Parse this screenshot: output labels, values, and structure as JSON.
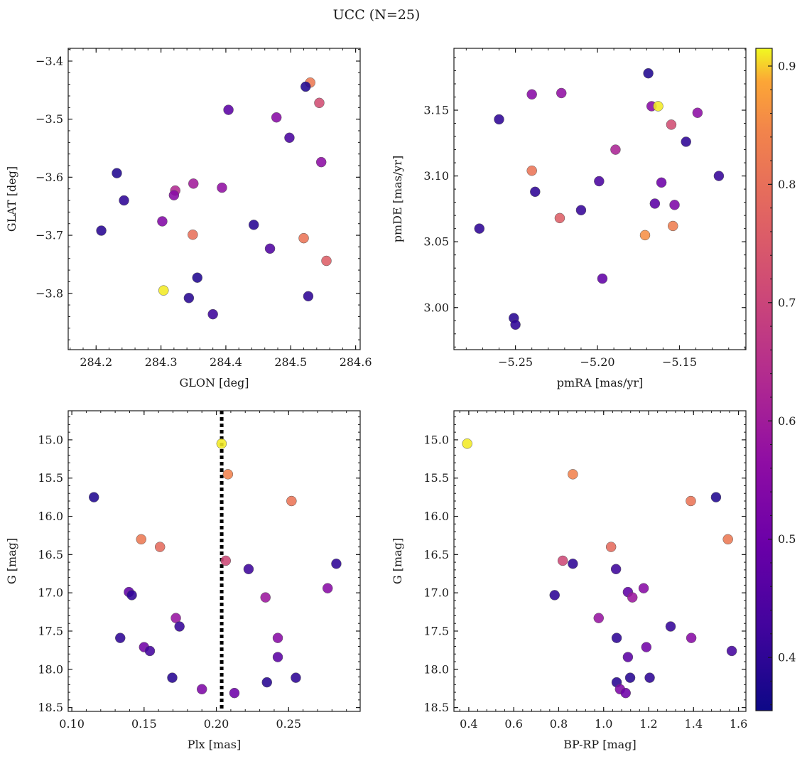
{
  "figure": {
    "title": "UCC (N=25)",
    "colorbar": {
      "colormap": "plasma",
      "vmin": 0.355,
      "vmax": 0.915,
      "ticks": [
        0.4,
        0.5,
        0.6,
        0.7,
        0.8,
        0.9
      ],
      "tick_labels": [
        "0.4",
        "0.5",
        "0.6",
        "0.7",
        "0.8",
        "0.9"
      ]
    },
    "colors": {
      "marker_edge": "#555555",
      "vline": "#000000",
      "axis": "#1a1a1a"
    }
  },
  "chart_data": [
    {
      "type": "scatter",
      "id": "glon-glat",
      "xlabel": "GLON [deg]",
      "ylabel": "GLAT [deg]",
      "xlim": [
        284.157,
        284.607
      ],
      "ylim": [
        -3.897,
        -3.378
      ],
      "y_inverted": false,
      "xticks": [
        284.2,
        284.3,
        284.4,
        284.5,
        284.6
      ],
      "xtick_labels": [
        "284.2",
        "284.3",
        "284.4",
        "284.5",
        "284.6"
      ],
      "yticks": [
        -3.8,
        -3.7,
        -3.6,
        -3.5,
        -3.4
      ],
      "ytick_labels": [
        "−3.8",
        "−3.7",
        "−3.6",
        "−3.5",
        "−3.4"
      ],
      "points": [
        {
          "x": 284.53,
          "y": -3.437,
          "c": 0.82
        },
        {
          "x": 284.523,
          "y": -3.444,
          "c": 0.38
        },
        {
          "x": 284.544,
          "y": -3.472,
          "c": 0.72
        },
        {
          "x": 284.404,
          "y": -3.484,
          "c": 0.47
        },
        {
          "x": 284.478,
          "y": -3.497,
          "c": 0.55
        },
        {
          "x": 284.498,
          "y": -3.532,
          "c": 0.44
        },
        {
          "x": 284.547,
          "y": -3.574,
          "c": 0.56
        },
        {
          "x": 284.232,
          "y": -3.593,
          "c": 0.38
        },
        {
          "x": 284.35,
          "y": -3.611,
          "c": 0.6
        },
        {
          "x": 284.394,
          "y": -3.618,
          "c": 0.57
        },
        {
          "x": 284.322,
          "y": -3.623,
          "c": 0.63
        },
        {
          "x": 284.32,
          "y": -3.631,
          "c": 0.55
        },
        {
          "x": 284.243,
          "y": -3.64,
          "c": 0.4
        },
        {
          "x": 284.302,
          "y": -3.676,
          "c": 0.54
        },
        {
          "x": 284.443,
          "y": -3.682,
          "c": 0.39
        },
        {
          "x": 284.208,
          "y": -3.692,
          "c": 0.39
        },
        {
          "x": 284.349,
          "y": -3.699,
          "c": 0.8
        },
        {
          "x": 284.52,
          "y": -3.705,
          "c": 0.81
        },
        {
          "x": 284.468,
          "y": -3.723,
          "c": 0.45
        },
        {
          "x": 284.555,
          "y": -3.744,
          "c": 0.76
        },
        {
          "x": 284.356,
          "y": -3.773,
          "c": 0.38
        },
        {
          "x": 284.304,
          "y": -3.795,
          "c": 0.91
        },
        {
          "x": 284.527,
          "y": -3.805,
          "c": 0.4
        },
        {
          "x": 284.343,
          "y": -3.808,
          "c": 0.39
        },
        {
          "x": 284.38,
          "y": -3.836,
          "c": 0.42
        }
      ]
    },
    {
      "type": "scatter",
      "id": "pmra-pmde",
      "xlabel": "pmRA [mas/yr]",
      "ylabel": "pmDE [mas/yr]",
      "xlim": [
        -5.2875,
        -5.1095
      ],
      "ylim": [
        2.968,
        3.197
      ],
      "y_inverted": false,
      "xticks": [
        -5.25,
        -5.2,
        -5.15
      ],
      "xtick_labels": [
        "−5.25",
        "−5.20",
        "−5.15"
      ],
      "yticks": [
        3.0,
        3.05,
        3.1,
        3.15
      ],
      "ytick_labels": [
        "3.00",
        "3.05",
        "3.10",
        "3.15"
      ],
      "points": [
        {
          "x": -5.169,
          "y": 3.178,
          "c": 0.38
        },
        {
          "x": -5.222,
          "y": 3.163,
          "c": 0.57
        },
        {
          "x": -5.24,
          "y": 3.162,
          "c": 0.55
        },
        {
          "x": -5.167,
          "y": 3.153,
          "c": 0.55
        },
        {
          "x": -5.163,
          "y": 3.153,
          "c": 0.91
        },
        {
          "x": -5.26,
          "y": 3.143,
          "c": 0.4
        },
        {
          "x": -5.139,
          "y": 3.148,
          "c": 0.56
        },
        {
          "x": -5.155,
          "y": 3.139,
          "c": 0.72
        },
        {
          "x": -5.146,
          "y": 3.126,
          "c": 0.4
        },
        {
          "x": -5.189,
          "y": 3.12,
          "c": 0.62
        },
        {
          "x": -5.24,
          "y": 3.104,
          "c": 0.81
        },
        {
          "x": -5.126,
          "y": 3.1,
          "c": 0.41
        },
        {
          "x": -5.199,
          "y": 3.096,
          "c": 0.44
        },
        {
          "x": -5.161,
          "y": 3.095,
          "c": 0.5
        },
        {
          "x": -5.238,
          "y": 3.088,
          "c": 0.4
        },
        {
          "x": -5.165,
          "y": 3.079,
          "c": 0.47
        },
        {
          "x": -5.153,
          "y": 3.078,
          "c": 0.53
        },
        {
          "x": -5.21,
          "y": 3.074,
          "c": 0.41
        },
        {
          "x": -5.223,
          "y": 3.068,
          "c": 0.76
        },
        {
          "x": -5.154,
          "y": 3.062,
          "c": 0.83
        },
        {
          "x": -5.272,
          "y": 3.06,
          "c": 0.4
        },
        {
          "x": -5.171,
          "y": 3.055,
          "c": 0.86
        },
        {
          "x": -5.197,
          "y": 3.022,
          "c": 0.48
        },
        {
          "x": -5.251,
          "y": 2.992,
          "c": 0.39
        },
        {
          "x": -5.25,
          "y": 2.987,
          "c": 0.4
        }
      ]
    },
    {
      "type": "scatter",
      "id": "plx-g",
      "xlabel": "Plx [mas]",
      "ylabel": "G [mag]",
      "xlim": [
        0.0975,
        0.2995
      ],
      "ylim": [
        18.55,
        14.62
      ],
      "y_inverted": true,
      "xticks": [
        0.1,
        0.15,
        0.2,
        0.25
      ],
      "xtick_labels": [
        "0.10",
        "0.15",
        "0.20",
        "0.25"
      ],
      "yticks": [
        15.0,
        15.5,
        16.0,
        16.5,
        17.0,
        17.5,
        18.0,
        18.5
      ],
      "ytick_labels": [
        "15.0",
        "15.5",
        "16.0",
        "16.5",
        "17.0",
        "17.5",
        "18.0",
        "18.5"
      ],
      "vline_x": 0.2037,
      "points": [
        {
          "x": 0.2036,
          "y": 15.05,
          "c": 0.91
        },
        {
          "x": 0.208,
          "y": 15.45,
          "c": 0.84
        },
        {
          "x": 0.1153,
          "y": 15.75,
          "c": 0.38
        },
        {
          "x": 0.252,
          "y": 15.8,
          "c": 0.81
        },
        {
          "x": 0.148,
          "y": 16.3,
          "c": 0.82
        },
        {
          "x": 0.161,
          "y": 16.4,
          "c": 0.79
        },
        {
          "x": 0.2065,
          "y": 16.58,
          "c": 0.71
        },
        {
          "x": 0.283,
          "y": 16.62,
          "c": 0.4
        },
        {
          "x": 0.2223,
          "y": 16.69,
          "c": 0.42
        },
        {
          "x": 0.277,
          "y": 16.94,
          "c": 0.55
        },
        {
          "x": 0.1395,
          "y": 16.99,
          "c": 0.48
        },
        {
          "x": 0.1415,
          "y": 17.03,
          "c": 0.4
        },
        {
          "x": 0.234,
          "y": 17.06,
          "c": 0.59
        },
        {
          "x": 0.172,
          "y": 17.33,
          "c": 0.58
        },
        {
          "x": 0.1745,
          "y": 17.44,
          "c": 0.41
        },
        {
          "x": 0.1335,
          "y": 17.59,
          "c": 0.4
        },
        {
          "x": 0.2425,
          "y": 17.59,
          "c": 0.55
        },
        {
          "x": 0.15,
          "y": 17.71,
          "c": 0.51
        },
        {
          "x": 0.154,
          "y": 17.76,
          "c": 0.43
        },
        {
          "x": 0.2425,
          "y": 17.84,
          "c": 0.47
        },
        {
          "x": 0.1695,
          "y": 18.11,
          "c": 0.39
        },
        {
          "x": 0.255,
          "y": 18.11,
          "c": 0.4
        },
        {
          "x": 0.235,
          "y": 18.17,
          "c": 0.39
        },
        {
          "x": 0.19,
          "y": 18.26,
          "c": 0.53
        },
        {
          "x": 0.2125,
          "y": 18.31,
          "c": 0.5
        }
      ]
    },
    {
      "type": "scatter",
      "id": "bprp-g",
      "xlabel": "BP-RP [mag]",
      "ylabel": "G [mag]",
      "xlim": [
        0.334,
        1.633
      ],
      "ylim": [
        18.55,
        14.62
      ],
      "y_inverted": true,
      "xticks": [
        0.4,
        0.6,
        0.8,
        1.0,
        1.2,
        1.4,
        1.6
      ],
      "xtick_labels": [
        "0.4",
        "0.6",
        "0.8",
        "1.0",
        "1.2",
        "1.4",
        "1.6"
      ],
      "yticks": [
        15.0,
        15.5,
        16.0,
        16.5,
        17.0,
        17.5,
        18.0,
        18.5
      ],
      "ytick_labels": [
        "15.0",
        "15.5",
        "16.0",
        "16.5",
        "17.0",
        "17.5",
        "18.0",
        "18.5"
      ],
      "points": [
        {
          "x": 0.393,
          "y": 15.05,
          "c": 0.91
        },
        {
          "x": 0.863,
          "y": 15.45,
          "c": 0.84
        },
        {
          "x": 1.5,
          "y": 15.75,
          "c": 0.38
        },
        {
          "x": 1.388,
          "y": 15.8,
          "c": 0.81
        },
        {
          "x": 1.553,
          "y": 16.3,
          "c": 0.82
        },
        {
          "x": 1.033,
          "y": 16.4,
          "c": 0.79
        },
        {
          "x": 0.818,
          "y": 16.58,
          "c": 0.71
        },
        {
          "x": 0.863,
          "y": 16.62,
          "c": 0.4
        },
        {
          "x": 1.055,
          "y": 16.69,
          "c": 0.42
        },
        {
          "x": 1.178,
          "y": 16.94,
          "c": 0.55
        },
        {
          "x": 1.108,
          "y": 16.99,
          "c": 0.48
        },
        {
          "x": 0.782,
          "y": 17.03,
          "c": 0.4
        },
        {
          "x": 1.128,
          "y": 17.06,
          "c": 0.59
        },
        {
          "x": 0.978,
          "y": 17.33,
          "c": 0.58
        },
        {
          "x": 1.298,
          "y": 17.44,
          "c": 0.41
        },
        {
          "x": 1.058,
          "y": 17.59,
          "c": 0.4
        },
        {
          "x": 1.39,
          "y": 17.59,
          "c": 0.55
        },
        {
          "x": 1.19,
          "y": 17.71,
          "c": 0.51
        },
        {
          "x": 1.57,
          "y": 17.76,
          "c": 0.43
        },
        {
          "x": 1.108,
          "y": 17.84,
          "c": 0.47
        },
        {
          "x": 1.118,
          "y": 18.11,
          "c": 0.39
        },
        {
          "x": 1.205,
          "y": 18.11,
          "c": 0.4
        },
        {
          "x": 1.058,
          "y": 18.17,
          "c": 0.39
        },
        {
          "x": 1.073,
          "y": 18.26,
          "c": 0.53
        },
        {
          "x": 1.098,
          "y": 18.31,
          "c": 0.5
        }
      ]
    }
  ]
}
